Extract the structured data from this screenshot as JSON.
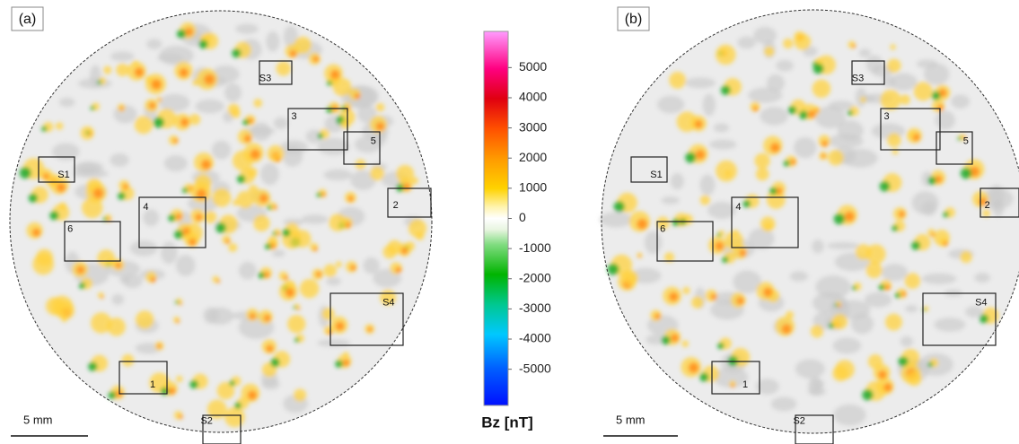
{
  "panels": [
    {
      "label": "(a)",
      "scale_bar": "5 mm",
      "boxes": [
        "S1",
        "S3",
        "3",
        "5",
        "2",
        "4",
        "6",
        "S4",
        "1",
        "S2"
      ]
    },
    {
      "label": "(b)",
      "scale_bar": "5 mm",
      "boxes": [
        "S1",
        "S3",
        "3",
        "5",
        "2",
        "4",
        "6",
        "S4",
        "1",
        "S2"
      ]
    }
  ],
  "colorbar": {
    "title": "Bz [nT]",
    "range": [
      -6200,
      6200
    ],
    "ticks": [
      5000,
      4000,
      3000,
      2000,
      1000,
      0,
      -1000,
      -2000,
      -3000,
      -4000,
      -5000
    ]
  }
}
